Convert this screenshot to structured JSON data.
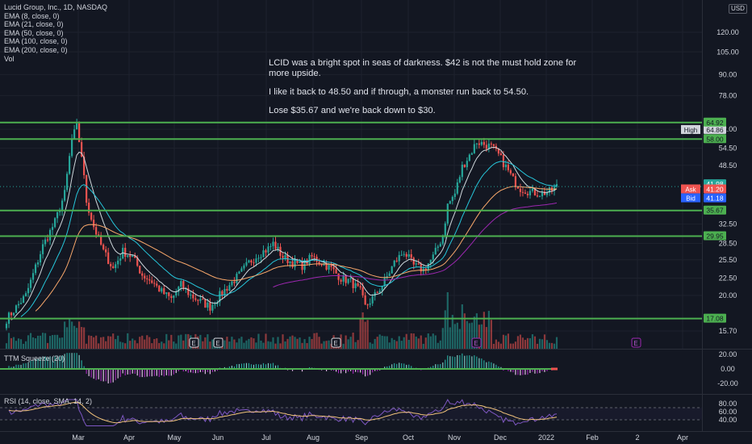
{
  "header": {
    "symbol_title": "Lucid Group, Inc., 1D, NASDAQ",
    "indicators": [
      "EMA (8, close, 0)",
      "EMA (21, close, 0)",
      "EMA (50, close, 0)",
      "EMA (100, close, 0)",
      "EMA (200, close, 0)",
      "Vol"
    ],
    "currency": "USD"
  },
  "annotation": {
    "lines": [
      "LCID was a bright spot in seas of darkness. $42 is not the must hold zone for more upside.",
      "I like it back to 48.50 and if through, a monster run back to 54.50.",
      "Lose $35.67 and we're back down to $30."
    ]
  },
  "colors": {
    "background": "#131722",
    "up": "#26a69a",
    "down": "#ef5350",
    "level_line": "#4caf50",
    "ema8": "#cfd8dc",
    "ema21": "#26c6da",
    "ema50": "#f9a86b",
    "ema200": "#9c27b0"
  },
  "chart_data": [
    {
      "type": "candlestick",
      "name": "price",
      "scale": "log",
      "x_labels": [
        "Mar",
        "Apr",
        "May",
        "Jun",
        "Jul",
        "Aug",
        "Sep",
        "Oct",
        "Nov",
        "Dec",
        "2022",
        "Feb",
        "2",
        "Apr"
      ],
      "y_ticks": [
        120.0,
        105.0,
        90.0,
        78.0,
        62.0,
        54.5,
        48.5,
        32.5,
        28.5,
        25.5,
        22.5,
        20.0,
        15.7
      ],
      "y_range": [
        14.0,
        140.0
      ],
      "horizontal_levels": [
        64.92,
        58.0,
        35.67,
        29.95,
        17.08
      ],
      "price_labels": [
        {
          "label": "High",
          "value": "64.86"
        },
        {
          "label": "",
          "value": "64.92"
        },
        {
          "label": "",
          "value": "58.00"
        },
        {
          "label": "",
          "value": "41.98"
        },
        {
          "label": "Ask",
          "value": "41.20"
        },
        {
          "label": "Bid",
          "value": "41.18"
        },
        {
          "label": "",
          "value": "35.67"
        },
        {
          "label": "",
          "value": "29.95"
        },
        {
          "label": "",
          "value": "17.08"
        }
      ],
      "earnings_markers": [
        "E",
        "E",
        "E",
        "E",
        "E"
      ],
      "last_price": 41.98,
      "series_shown": [
        "EMA 8",
        "EMA 21",
        "EMA 50",
        "EMA 200",
        "Volume"
      ]
    },
    {
      "type": "histogram",
      "name": "TTM Squeeze (20)",
      "label": "TTM Squeeze (20)",
      "y_ticks": [
        20.0,
        0.0,
        -20.0
      ],
      "y_tick_labels": [
        "20.00",
        "0.00",
        "-20.00"
      ]
    },
    {
      "type": "line",
      "name": "RSI (14, close, SMA, 14, 2)",
      "label": "RSI (14, close, SMA, 14, 2)",
      "y_ticks": [
        80.0,
        60.0,
        40.0
      ],
      "y_tick_labels": [
        "80.00",
        "60.00",
        "40.00"
      ],
      "band": [
        40,
        70
      ]
    }
  ]
}
